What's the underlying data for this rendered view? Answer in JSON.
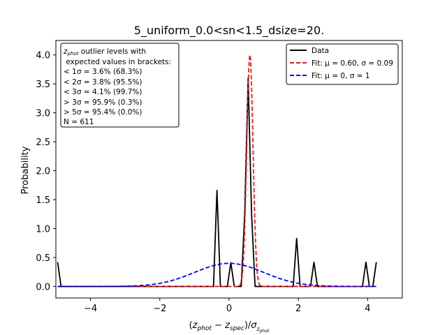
{
  "chart_data": {
    "type": "line",
    "title": "5_uniform_0.0<sn<1.5_dsize=20.",
    "xlabel": "(z_phot − z_spec)/σ_z_phot",
    "ylabel": "Probability",
    "xlim": [
      -5,
      5
    ],
    "ylim": [
      -0.2,
      4.25
    ],
    "xticks": [
      -4,
      -2,
      0,
      2,
      4
    ],
    "xtick_labels": [
      "−4",
      "−2",
      "0",
      "2",
      "4"
    ],
    "yticks": [
      0.0,
      0.5,
      1.0,
      1.5,
      2.0,
      2.5,
      3.0,
      3.5,
      4.0
    ],
    "ytick_labels": [
      "0.0",
      "0.5",
      "1.0",
      "1.5",
      "2.0",
      "2.5",
      "3.0",
      "3.5",
      "4.0"
    ],
    "grid": false,
    "legend_position": "top-right",
    "series": [
      {
        "name": "Data",
        "color": "#000000",
        "style": "solid",
        "x": [
          -4.95,
          -4.85,
          -4.75,
          -0.45,
          -0.35,
          -0.25,
          -0.05,
          0.05,
          0.15,
          0.35,
          0.45,
          0.55,
          0.65,
          0.75,
          1.85,
          1.95,
          2.05,
          2.35,
          2.45,
          2.55,
          3.85,
          3.95,
          4.05,
          4.15,
          4.25
        ],
        "y": [
          0.42,
          0.0,
          0.0,
          0.0,
          1.66,
          0.0,
          0.0,
          0.41,
          0.0,
          0.0,
          1.24,
          3.6,
          1.24,
          0.0,
          0.0,
          0.83,
          0.0,
          0.0,
          0.42,
          0.0,
          0.0,
          0.42,
          0.0,
          0.0,
          0.42
        ]
      },
      {
        "name": "Fit: μ = 0.60, σ = 0.09",
        "color": "#e31a1c",
        "style": "dashed",
        "gaussian": {
          "mu": 0.6,
          "sigma": 0.09,
          "amplitude": 4.0
        },
        "x_range": [
          -4.95,
          4.25
        ]
      },
      {
        "name": "Fit: μ = 0, σ = 1",
        "color": "#0000ee",
        "style": "dashed",
        "gaussian": {
          "mu": 0.0,
          "sigma": 1.0,
          "amplitude": 0.399
        },
        "x_range": [
          -4.95,
          4.25
        ]
      }
    ],
    "annotation_box": {
      "lines": [
        "z_phot outlier levels with",
        " expected values in brackets:",
        "< 1σ = 3.6% (68.3%)",
        "< 2σ = 3.8% (95.5%)",
        "< 3σ = 4.1% (99.7%)",
        "> 3σ = 95.9% (0.3%)",
        "> 5σ = 95.4% (0.0%)",
        "N = 611"
      ]
    }
  }
}
